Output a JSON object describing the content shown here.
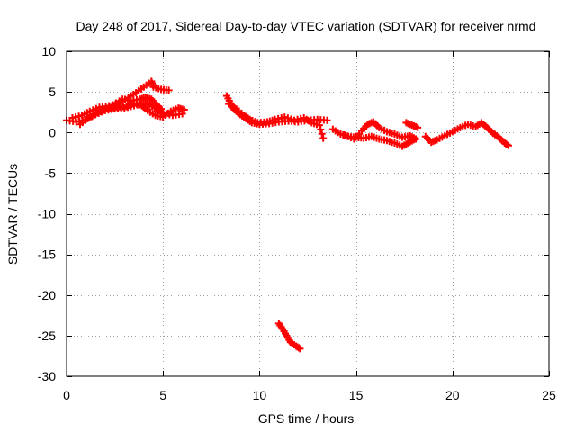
{
  "chart_data": {
    "type": "scatter",
    "title": "Day 248 of 2017, Sidereal Day-to-day VTEC variation (SDTVAR) for receiver nrmd",
    "xlabel": "GPS time / hours",
    "ylabel": "SDTVAR / TECUs",
    "xlim": [
      0,
      25
    ],
    "ylim": [
      -30,
      10
    ],
    "xticks": [
      0,
      5,
      10,
      15,
      20,
      25
    ],
    "yticks": [
      10,
      5,
      0,
      -5,
      -10,
      -15,
      -20,
      -25,
      -30
    ],
    "grid": true,
    "marker": "+",
    "series": [
      {
        "name": "nrmd",
        "color": "#ff0000",
        "segments": [
          [
            [
              0.0,
              1.5
            ],
            [
              0.5,
              1.3
            ],
            [
              1.0,
              1.6
            ],
            [
              1.5,
              2.2
            ],
            [
              2.0,
              2.7
            ],
            [
              2.5,
              2.9
            ],
            [
              3.0,
              3.0
            ],
            [
              3.5,
              3.3
            ],
            [
              4.0,
              3.6
            ],
            [
              4.3,
              3.4
            ],
            [
              4.7,
              2.8
            ],
            [
              5.0,
              2.4
            ],
            [
              5.5,
              2.1
            ],
            [
              6.0,
              2.3
            ]
          ],
          [
            [
              0.3,
              1.8
            ],
            [
              0.8,
              2.1
            ],
            [
              1.2,
              2.6
            ],
            [
              1.7,
              3.1
            ],
            [
              2.2,
              3.3
            ],
            [
              2.7,
              3.6
            ],
            [
              3.2,
              4.3
            ],
            [
              3.6,
              4.9
            ],
            [
              4.0,
              5.6
            ],
            [
              4.4,
              6.3
            ],
            [
              4.5,
              5.6
            ],
            [
              4.9,
              5.3
            ],
            [
              5.3,
              5.2
            ]
          ],
          [
            [
              0.7,
              1.0
            ],
            [
              1.1,
              1.7
            ],
            [
              1.6,
              2.4
            ],
            [
              2.1,
              2.9
            ],
            [
              2.6,
              3.1
            ],
            [
              3.1,
              3.2
            ],
            [
              3.5,
              3.6
            ],
            [
              3.9,
              3.3
            ],
            [
              4.2,
              2.7
            ],
            [
              4.6,
              2.1
            ],
            [
              5.0,
              1.9
            ],
            [
              5.4,
              2.6
            ],
            [
              5.8,
              3.0
            ],
            [
              6.1,
              2.8
            ]
          ],
          [
            [
              2.4,
              3.4
            ],
            [
              2.9,
              4.1
            ],
            [
              3.3,
              3.9
            ],
            [
              3.8,
              4.1
            ],
            [
              4.1,
              4.3
            ],
            [
              4.4,
              4.1
            ],
            [
              4.6,
              3.5
            ],
            [
              4.9,
              2.9
            ]
          ],
          [
            [
              8.3,
              4.5
            ],
            [
              8.5,
              3.6
            ],
            [
              8.7,
              2.8
            ],
            [
              9.0,
              2.2
            ],
            [
              9.3,
              1.7
            ],
            [
              9.6,
              1.2
            ],
            [
              10.0,
              1.0
            ],
            [
              10.5,
              1.1
            ],
            [
              11.0,
              1.3
            ],
            [
              11.5,
              1.4
            ],
            [
              12.0,
              1.3
            ],
            [
              12.5,
              1.5
            ],
            [
              13.0,
              1.6
            ],
            [
              13.5,
              1.5
            ]
          ],
          [
            [
              8.4,
              3.5
            ],
            [
              8.8,
              2.9
            ],
            [
              9.2,
              2.1
            ],
            [
              9.5,
              1.6
            ],
            [
              9.9,
              1.2
            ],
            [
              10.4,
              1.3
            ],
            [
              10.8,
              1.6
            ],
            [
              11.3,
              1.9
            ],
            [
              11.8,
              1.5
            ],
            [
              12.3,
              1.8
            ],
            [
              12.7,
              1.2
            ],
            [
              13.1,
              0.9
            ],
            [
              13.3,
              -0.7
            ]
          ],
          [
            [
              13.8,
              0.4
            ],
            [
              14.2,
              -0.2
            ],
            [
              14.6,
              -0.5
            ],
            [
              15.0,
              -0.6
            ],
            [
              15.4,
              -0.7
            ],
            [
              15.8,
              -0.5
            ],
            [
              16.2,
              -0.8
            ],
            [
              16.6,
              -1.0
            ],
            [
              17.0,
              -1.3
            ],
            [
              17.4,
              -1.7
            ],
            [
              17.7,
              -1.3
            ],
            [
              18.0,
              -0.9
            ]
          ],
          [
            [
              14.4,
              -0.3
            ],
            [
              14.9,
              -0.8
            ],
            [
              15.3,
              0.2
            ],
            [
              15.6,
              1.0
            ],
            [
              15.9,
              1.3
            ],
            [
              16.2,
              0.6
            ],
            [
              16.6,
              0.1
            ],
            [
              17.0,
              -0.2
            ],
            [
              17.4,
              -0.6
            ],
            [
              17.8,
              -0.4
            ],
            [
              18.1,
              -0.8
            ]
          ],
          [
            [
              17.6,
              1.2
            ],
            [
              17.9,
              0.9
            ],
            [
              18.2,
              0.6
            ]
          ],
          [
            [
              18.6,
              -0.5
            ],
            [
              18.9,
              -1.2
            ],
            [
              19.2,
              -0.9
            ],
            [
              19.6,
              -0.4
            ],
            [
              20.0,
              0.1
            ],
            [
              20.4,
              0.6
            ],
            [
              20.8,
              1.0
            ],
            [
              21.2,
              0.7
            ],
            [
              21.5,
              1.2
            ],
            [
              21.8,
              0.6
            ],
            [
              22.1,
              -0.1
            ],
            [
              22.4,
              -0.6
            ],
            [
              22.7,
              -1.3
            ],
            [
              22.9,
              -1.6
            ]
          ],
          [
            [
              11.0,
              -23.5
            ],
            [
              11.2,
              -24.2
            ],
            [
              11.4,
              -25.0
            ],
            [
              11.6,
              -25.8
            ],
            [
              11.9,
              -26.3
            ],
            [
              12.1,
              -26.6
            ]
          ]
        ]
      }
    ]
  }
}
